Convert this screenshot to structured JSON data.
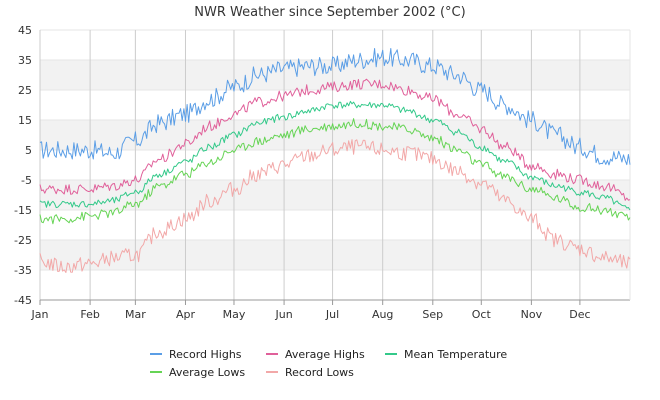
{
  "chart_data": {
    "type": "line",
    "title": "NWR Weather since September 2002 (°C)",
    "xlabel": "",
    "ylabel": "",
    "ylim": [
      -45,
      45
    ],
    "yticks": [
      45,
      35,
      25,
      15,
      5,
      -5,
      -15,
      -25,
      -35,
      -45
    ],
    "xlim": [
      1,
      366
    ],
    "month_ticks": [
      {
        "label": "Jan",
        "day": 1
      },
      {
        "label": "Feb",
        "day": 32
      },
      {
        "label": "Mar",
        "day": 60
      },
      {
        "label": "Apr",
        "day": 91
      },
      {
        "label": "May",
        "day": 121
      },
      {
        "label": "Jun",
        "day": 152
      },
      {
        "label": "Jul",
        "day": 182
      },
      {
        "label": "Aug",
        "day": 213
      },
      {
        "label": "Sep",
        "day": 244
      },
      {
        "label": "Oct",
        "day": 274
      },
      {
        "label": "Nov",
        "day": 305
      },
      {
        "label": "Dec",
        "day": 335
      }
    ],
    "grid": "vertical lines at month starts; alternating horizontal bands",
    "legend_position": "bottom",
    "series": [
      {
        "name": "Record Highs",
        "color": "#5b9ee6",
        "x": [
          1,
          15,
          32,
          46,
          60,
          75,
          91,
          106,
          121,
          136,
          152,
          167,
          182,
          197,
          213,
          228,
          244,
          259,
          274,
          289,
          305,
          320,
          335,
          350,
          366
        ],
        "values": [
          5,
          5,
          5,
          4,
          8,
          14,
          17,
          22,
          26,
          30,
          32,
          33,
          33,
          35,
          36,
          35,
          33,
          30,
          25,
          20,
          15,
          10,
          6,
          3,
          2
        ]
      },
      {
        "name": "Average Highs",
        "color": "#e0609a",
        "x": [
          1,
          15,
          32,
          46,
          60,
          75,
          91,
          106,
          121,
          136,
          152,
          167,
          182,
          197,
          213,
          228,
          244,
          259,
          274,
          289,
          305,
          320,
          335,
          350,
          366
        ],
        "values": [
          -8,
          -8,
          -8,
          -7,
          -5,
          2,
          7,
          13,
          17,
          21,
          23,
          25,
          26,
          27,
          27,
          25,
          22,
          17,
          12,
          6,
          0,
          -3,
          -5,
          -7,
          -11
        ]
      },
      {
        "name": "Mean Temperature",
        "color": "#34c98a",
        "x": [
          1,
          15,
          32,
          46,
          60,
          75,
          91,
          106,
          121,
          136,
          152,
          167,
          182,
          197,
          213,
          228,
          244,
          259,
          274,
          289,
          305,
          320,
          335,
          350,
          366
        ],
        "values": [
          -13,
          -13,
          -13,
          -12,
          -9,
          -3,
          1,
          6,
          10,
          14,
          16,
          18,
          20,
          20,
          20,
          18,
          15,
          11,
          6,
          1,
          -4,
          -7,
          -9,
          -11,
          -15
        ]
      },
      {
        "name": "Average Lows",
        "color": "#66d455",
        "x": [
          1,
          15,
          32,
          46,
          60,
          75,
          91,
          106,
          121,
          136,
          152,
          167,
          182,
          197,
          213,
          228,
          244,
          259,
          274,
          289,
          305,
          320,
          335,
          350,
          366
        ],
        "values": [
          -18,
          -18,
          -17,
          -16,
          -13,
          -7,
          -3,
          1,
          5,
          8,
          10,
          12,
          13,
          14,
          13,
          12,
          9,
          5,
          0,
          -4,
          -8,
          -11,
          -14,
          -15,
          -18
        ]
      },
      {
        "name": "Record Lows",
        "color": "#f2a8a8",
        "x": [
          1,
          15,
          32,
          46,
          60,
          75,
          91,
          106,
          121,
          136,
          152,
          167,
          182,
          197,
          213,
          228,
          244,
          259,
          274,
          289,
          305,
          320,
          335,
          350,
          366
        ],
        "values": [
          -32,
          -34,
          -33,
          -31,
          -30,
          -22,
          -18,
          -12,
          -8,
          -3,
          0,
          3,
          5,
          6,
          5,
          4,
          2,
          -2,
          -6,
          -12,
          -18,
          -25,
          -28,
          -31,
          -33
        ]
      }
    ]
  }
}
